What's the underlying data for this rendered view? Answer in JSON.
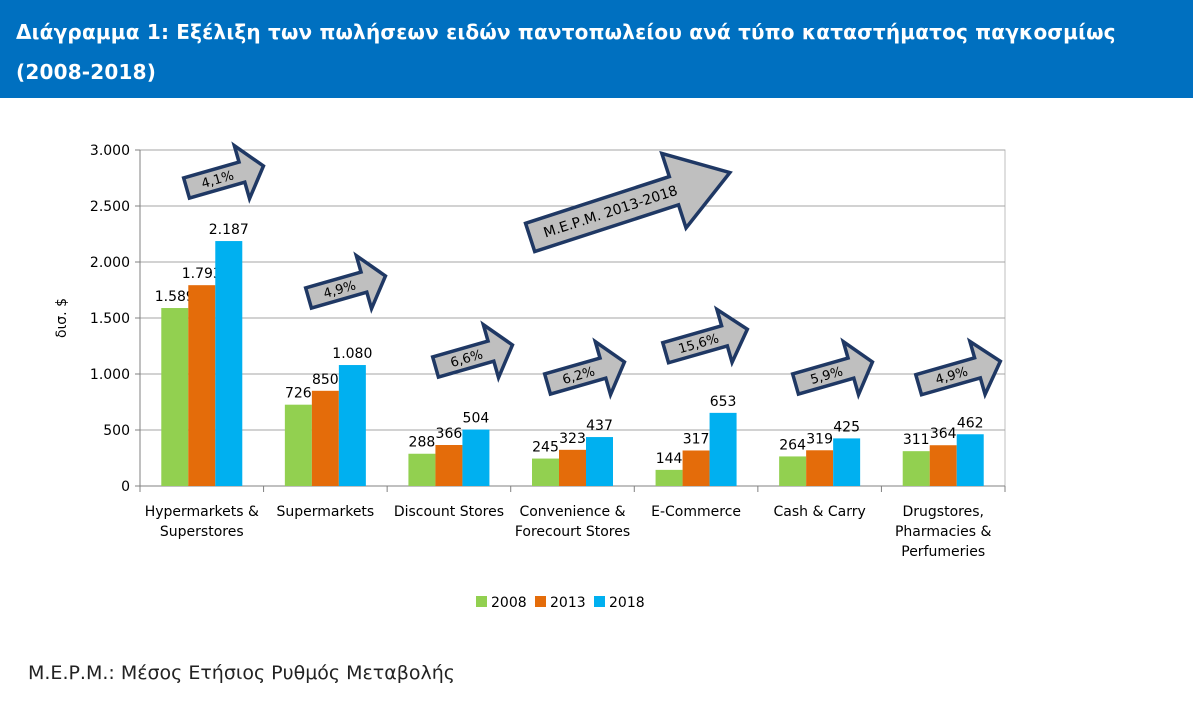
{
  "header": {
    "title": "Διάγραμμα 1: Εξέλιξη των πωλήσεων ειδών παντοπωλείου ανά τύπο καταστήματος παγκοσμίως (2008-2018)"
  },
  "footnote": "Μ.Ε.Ρ.Μ.: Μέσος Ετήσιος Ρυθμός Μεταβολής",
  "colors": {
    "header_bg": "#0070c0",
    "s2008": "#92d050",
    "s2013": "#e46c0a",
    "s2018": "#00b0f0",
    "arrow_fill": "#bfbfbf",
    "arrow_stroke": "#1f3864"
  },
  "chart_data": {
    "type": "bar",
    "title": "",
    "xlabel": "",
    "ylabel": "δισ. $",
    "ylim": [
      0,
      3000
    ],
    "yticks": [
      0,
      500,
      1000,
      1500,
      2000,
      2500,
      3000
    ],
    "ytick_labels": [
      "0",
      "500",
      "1.000",
      "1.500",
      "2.000",
      "2.500",
      "3.000"
    ],
    "grid": true,
    "legend_position": "bottom",
    "categories": [
      [
        "Hypermarkets &",
        "Superstores"
      ],
      [
        "Supermarkets"
      ],
      [
        "Discount Stores"
      ],
      [
        "Convenience &",
        "Forecourt Stores"
      ],
      [
        "E-Commerce"
      ],
      [
        "Cash & Carry"
      ],
      [
        "Drugstores,",
        "Pharmacies &",
        "Perfumeries"
      ]
    ],
    "series": [
      {
        "name": "2008",
        "color": "#92d050",
        "values": [
          1589,
          726,
          288,
          245,
          144,
          264,
          311
        ],
        "labels": [
          "1.589",
          "726",
          "288",
          "245",
          "144",
          "264",
          "311"
        ]
      },
      {
        "name": "2013",
        "color": "#e46c0a",
        "values": [
          1793,
          850,
          366,
          323,
          317,
          319,
          364
        ],
        "labels": [
          "1.793",
          "850",
          "366",
          "323",
          "317",
          "319",
          "364"
        ]
      },
      {
        "name": "2018",
        "color": "#00b0f0",
        "values": [
          2187,
          1080,
          504,
          437,
          653,
          425,
          462
        ],
        "labels": [
          "2.187",
          "1.080",
          "504",
          "437",
          "653",
          "425",
          "462"
        ]
      }
    ],
    "growth_annotations": [
      "4,1%",
      "4,9%",
      "6,6%",
      "6,2%",
      "15,6%",
      "5,9%",
      "4,9%"
    ],
    "legend_annotation": "Μ.Ε.Ρ.Μ. 2013-2018"
  }
}
